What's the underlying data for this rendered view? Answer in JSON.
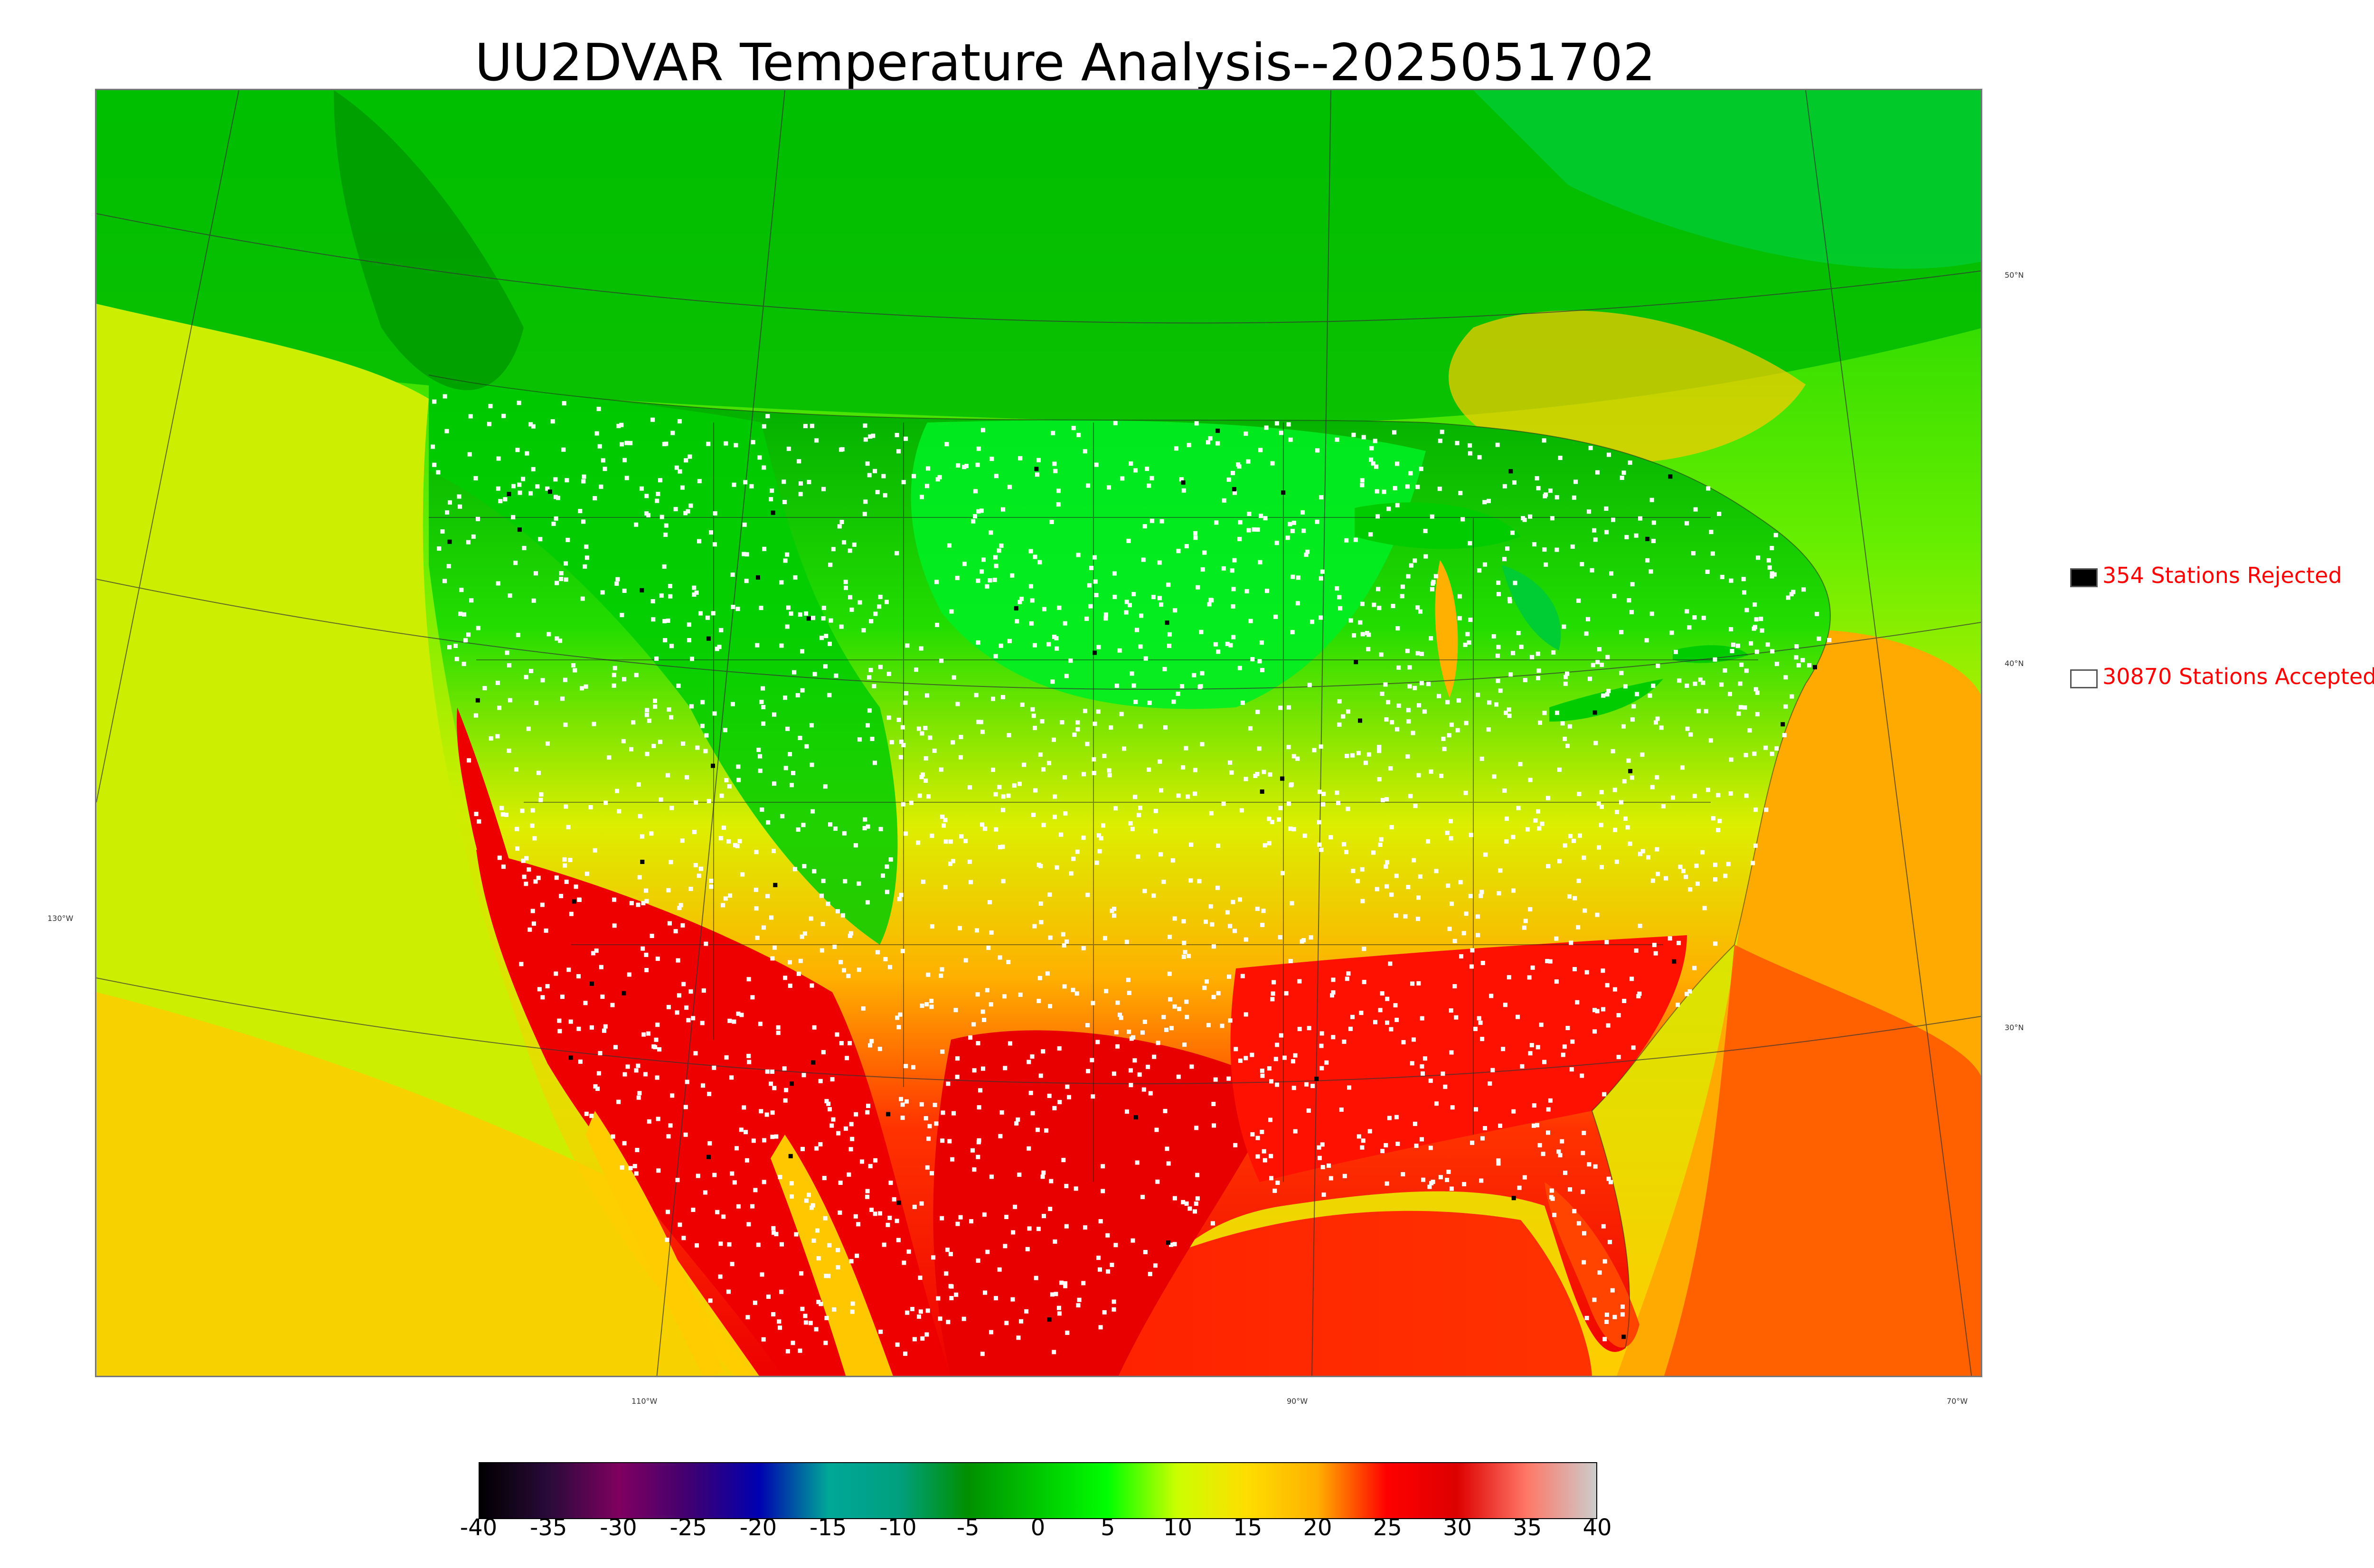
{
  "title": "UU2DVAR Temperature Analysis--2025051702",
  "legend": {
    "rejected": {
      "label": "354 Stations Rejected",
      "color": "#000000"
    },
    "accepted": {
      "label": "30870 Stations Accepted",
      "color": "#ffffff"
    }
  },
  "axis_labels": {
    "lon_130": "130°W",
    "lon_110": "110°W",
    "lon_90": "90°W",
    "lon_70": "70°W",
    "lat_50": "50°N",
    "lat_40": "40°N",
    "lat_30": "30°N"
  },
  "colorbar": {
    "ticks": [
      "-40",
      "-35",
      "-30",
      "-25",
      "-20",
      "-15",
      "-10",
      "-5",
      "0",
      "5",
      "10",
      "15",
      "20",
      "25",
      "30",
      "35",
      "40"
    ],
    "colors": [
      "#000000",
      "#2a0a3a",
      "#800060",
      "#400070",
      "#0000b0",
      "#00a898",
      "#00a080",
      "#009000",
      "#00c800",
      "#00ff00",
      "#ccff00",
      "#ffdd00",
      "#ffb000",
      "#ff0000",
      "#dd0000",
      "#ff7766",
      "#cccccc"
    ]
  },
  "map_colors": {
    "cold_green": "#00a800",
    "green": "#00dd00",
    "yellow_green": "#ccee00",
    "yellow": "#ffdd00",
    "orange": "#ffaa00",
    "red": "#ff1a00",
    "deep_red": "#e00000"
  }
}
